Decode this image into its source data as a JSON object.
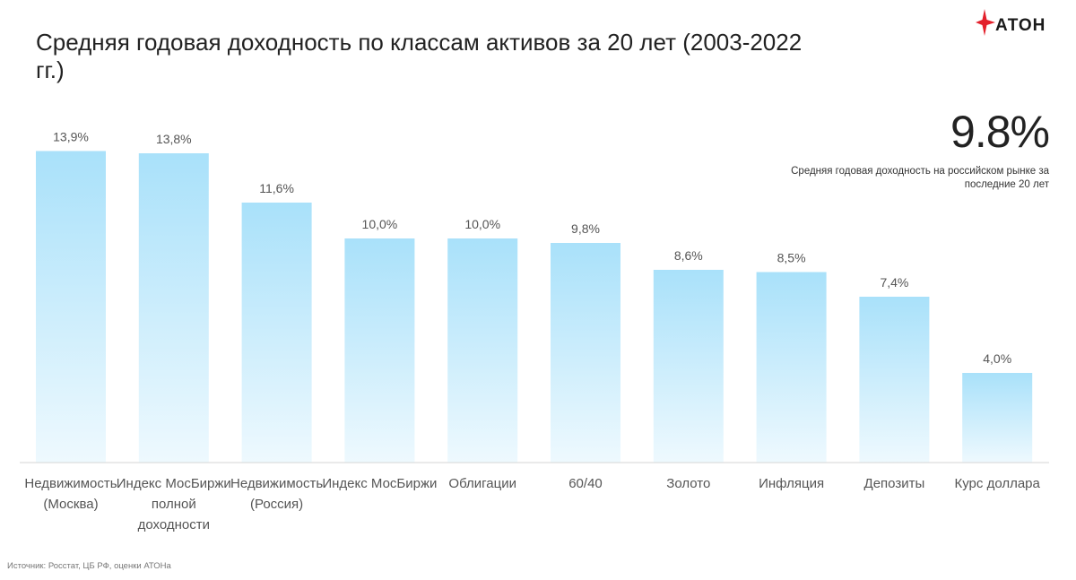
{
  "header": {
    "title": "Средняя годовая доходность по классам активов за 20 лет (2003-2022 гг.)",
    "logo_text": "АТОН"
  },
  "highlight": {
    "value": "9.8%",
    "caption": "Средняя годовая доходность на российском рынке за последние 20 лет"
  },
  "footer": {
    "source": "Источник: Росстат, ЦБ РФ, оценки АТОНа"
  },
  "colors": {
    "bar_top": "#a9e1fa",
    "bar_bottom": "#eef9fe",
    "logo_red": "#e3202b"
  },
  "chart_data": {
    "type": "bar",
    "categories": [
      "Недвижимость (Москва)",
      "Индекс МосБиржи полной доходности",
      "Недвижимость (Россия)",
      "Индекс МосБиржи",
      "Облигации",
      "60/40",
      "Золото",
      "Инфляция",
      "Депозиты",
      "Курс доллара"
    ],
    "values": [
      13.9,
      13.8,
      11.6,
      10.0,
      10.0,
      9.8,
      8.6,
      8.5,
      7.4,
      4.0
    ],
    "value_labels": [
      "13,9%",
      "13,8%",
      "11,6%",
      "10,0%",
      "10,0%",
      "9,8%",
      "8,6%",
      "8,5%",
      "7,4%",
      "4,0%"
    ],
    "ylim": [
      0,
      14
    ],
    "grid": false,
    "legend": "none"
  }
}
